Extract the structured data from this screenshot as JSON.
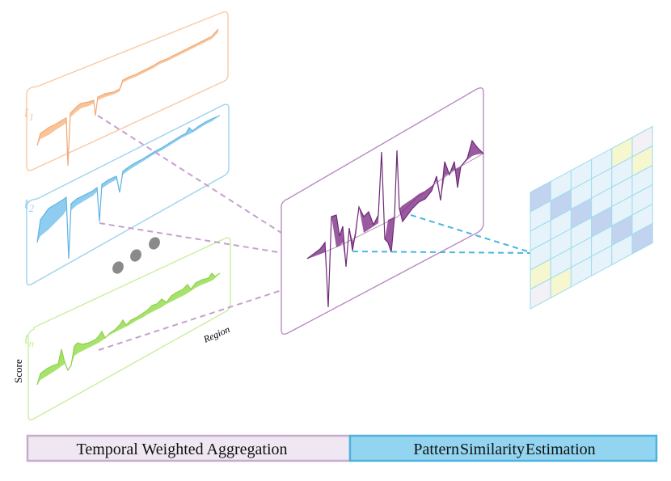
{
  "panels": {
    "t1": {
      "label": "t",
      "sub": "1",
      "stroke": "#f8c9a4",
      "fill": "#f9c49a",
      "line": "#f3a874"
    },
    "t2": {
      "label": "t",
      "sub": "2",
      "stroke": "#9cd3ee",
      "fill": "#8fcdf0",
      "line": "#5fb3e3"
    },
    "tn": {
      "label": "t",
      "sub": "n",
      "stroke": "#c9ef9f",
      "fill": "#a7e36b",
      "line": "#8fd04f"
    }
  },
  "axes": {
    "y_label": "Score",
    "x_label": "Region"
  },
  "aggregate": {
    "stroke": "#b98cc3",
    "fill": "#9a5aa0",
    "line": "#6e2a78"
  },
  "connector_colors": {
    "temporal": "#c79fd0",
    "similarity": "#4ab6df"
  },
  "ellipsis_color": "#8a8a8a",
  "heatmap": {
    "stroke": "#9edced",
    "rows": 6,
    "cols": 6,
    "cells": [
      [
        "#c1d3ee",
        "#e7f3fa",
        "#e7f3fa",
        "#e7f3fa",
        "#f6f7cf",
        "#f3f0f6"
      ],
      [
        "#e7f3fa",
        "#c1d3ee",
        "#e7f3fa",
        "#e7f3fa",
        "#e7f3fa",
        "#f6f7cf"
      ],
      [
        "#e7f3fa",
        "#e7f3fa",
        "#c1d3ee",
        "#e7f3fa",
        "#e7f3fa",
        "#e7f3fa"
      ],
      [
        "#e7f3fa",
        "#e7f3fa",
        "#e7f3fa",
        "#c1d3ee",
        "#e7f3fa",
        "#e7f3fa"
      ],
      [
        "#f6f7cf",
        "#e7f3fa",
        "#e7f3fa",
        "#e7f3fa",
        "#c1d3ee",
        "#e7f3fa"
      ],
      [
        "#f3f0f6",
        "#f6f7cf",
        "#e7f3fa",
        "#e7f3fa",
        "#e7f3fa",
        "#c1d3ee"
      ]
    ]
  },
  "bars": {
    "left": {
      "label": "Temporal Weighted Aggregation",
      "fill": "#efe7f1",
      "stroke": "#c8a9cf"
    },
    "right": {
      "label": "Pattern Similarity Estimation",
      "fill": "#93d5f1",
      "stroke": "#4eb2dc"
    }
  }
}
